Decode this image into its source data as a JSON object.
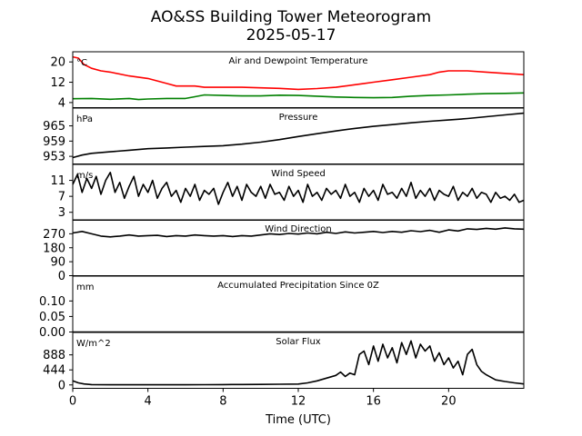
{
  "page": {
    "title": "AO&SS Building Tower Meteorogram",
    "subtitle": "2025-05-17",
    "xlabel": "Time (UTC)"
  },
  "chart_data": [
    {
      "type": "line",
      "title": "Air and Dewpoint Temperature",
      "unit": "°C",
      "ylim": [
        2,
        24
      ],
      "yticks": [
        4,
        12,
        20
      ],
      "series": [
        {
          "color": "#ff0000",
          "x": [
            0,
            0.3,
            0.6,
            1,
            1.5,
            2,
            3,
            4,
            5,
            5.5,
            6,
            6.5,
            7,
            8,
            9,
            10,
            11,
            12,
            13,
            14,
            14.5,
            15,
            15.5,
            16,
            17,
            18,
            19,
            19.5,
            20,
            21,
            22,
            23,
            24
          ],
          "values": [
            22,
            21.5,
            19,
            17.5,
            16.5,
            16,
            14.5,
            13.5,
            11.5,
            10.5,
            10.5,
            10.5,
            10,
            10,
            10,
            9.8,
            9.6,
            9.2,
            9.5,
            10,
            10.5,
            11,
            11.5,
            12,
            13,
            14,
            15,
            16,
            16.5,
            16.5,
            16,
            15.5,
            15
          ]
        },
        {
          "color": "#008000",
          "x": [
            0,
            1,
            2,
            3,
            3.5,
            4,
            5,
            6,
            6.5,
            7,
            8,
            9,
            10,
            11,
            12,
            13,
            14,
            15,
            16,
            17,
            18,
            19,
            20,
            21,
            22,
            23,
            24
          ],
          "values": [
            5.5,
            5.6,
            5.3,
            5.6,
            5.2,
            5.4,
            5.6,
            5.6,
            6.3,
            7,
            6.8,
            6.6,
            6.6,
            6.9,
            6.8,
            6.5,
            6.2,
            6,
            5.9,
            6,
            6.5,
            6.8,
            7,
            7.3,
            7.5,
            7.6,
            7.8
          ]
        }
      ]
    },
    {
      "type": "line",
      "title": "Pressure",
      "unit": "hPa",
      "ylim": [
        950,
        972
      ],
      "yticks": [
        953,
        959,
        965
      ],
      "series": [
        {
          "color": "#000000",
          "x": [
            0,
            0.5,
            1,
            2,
            3,
            4,
            5,
            6,
            7,
            8,
            9,
            10,
            11,
            12,
            13,
            14,
            15,
            16,
            17,
            18,
            19,
            20,
            21,
            22,
            23,
            24
          ],
          "values": [
            952.5,
            953.5,
            954.2,
            954.8,
            955.4,
            956,
            956.3,
            956.6,
            956.9,
            957.2,
            957.8,
            958.6,
            959.6,
            960.8,
            961.9,
            963,
            964,
            964.8,
            965.5,
            966.2,
            966.8,
            967.3,
            967.9,
            968.6,
            969.3,
            970
          ]
        }
      ]
    },
    {
      "type": "line",
      "title": "Wind Speed",
      "unit": "m/s",
      "ylim": [
        1,
        15
      ],
      "yticks": [
        3,
        7,
        11
      ],
      "series": [
        {
          "color": "#000000",
          "x": [
            0,
            0.25,
            0.5,
            0.75,
            1,
            1.25,
            1.5,
            1.75,
            2,
            2.25,
            2.5,
            2.75,
            3,
            3.25,
            3.5,
            3.75,
            4,
            4.25,
            4.5,
            4.75,
            5,
            5.25,
            5.5,
            5.75,
            6,
            6.25,
            6.5,
            6.75,
            7,
            7.25,
            7.5,
            7.75,
            8,
            8.25,
            8.5,
            8.75,
            9,
            9.25,
            9.5,
            9.75,
            10,
            10.25,
            10.5,
            10.75,
            11,
            11.25,
            11.5,
            11.75,
            12,
            12.25,
            12.5,
            12.75,
            13,
            13.25,
            13.5,
            13.75,
            14,
            14.25,
            14.5,
            14.75,
            15,
            15.25,
            15.5,
            15.75,
            16,
            16.25,
            16.5,
            16.75,
            17,
            17.25,
            17.5,
            17.75,
            18,
            18.25,
            18.5,
            18.75,
            19,
            19.25,
            19.5,
            19.75,
            20,
            20.25,
            20.5,
            20.75,
            21,
            21.25,
            21.5,
            21.75,
            22,
            22.25,
            22.5,
            22.75,
            23,
            23.25,
            23.5,
            23.75,
            24
          ],
          "values": [
            10,
            12.5,
            8,
            11.5,
            9,
            12,
            7.5,
            11,
            13,
            8,
            10.5,
            6.5,
            9.5,
            12,
            7,
            10,
            8,
            11,
            6.5,
            9,
            10.5,
            7,
            8.5,
            5.5,
            9,
            7,
            10,
            6,
            8.5,
            7.5,
            9,
            5,
            8,
            10.5,
            7,
            9.5,
            6,
            10,
            8,
            7,
            9.5,
            6.5,
            10,
            7.5,
            8,
            6,
            9.5,
            7,
            8.5,
            5.5,
            10,
            7,
            8,
            6,
            9,
            7.5,
            8.5,
            6.5,
            10,
            7,
            8,
            5.5,
            9,
            7,
            8.5,
            6,
            10,
            7.5,
            8,
            6.5,
            9,
            7,
            10.5,
            6.5,
            8.5,
            7,
            9,
            6,
            8.5,
            7.5,
            7,
            9.5,
            6,
            8,
            7,
            9,
            6.5,
            8,
            7.5,
            5.5,
            8,
            6.5,
            7,
            6,
            7.5,
            5.5,
            6
          ]
        }
      ]
    },
    {
      "type": "line",
      "title": "Wind Direction",
      "unit": "",
      "ylim": [
        0,
        360
      ],
      "yticks": [
        0,
        90,
        180,
        270
      ],
      "series": [
        {
          "color": "#000000",
          "x": [
            0,
            0.5,
            1,
            1.5,
            2,
            2.5,
            3,
            3.5,
            4,
            4.5,
            5,
            5.5,
            6,
            6.5,
            7,
            7.5,
            8,
            8.5,
            9,
            9.5,
            10,
            10.5,
            11,
            11.5,
            12,
            12.5,
            13,
            13.5,
            14,
            14.5,
            15,
            15.5,
            16,
            16.5,
            17,
            17.5,
            18,
            18.5,
            19,
            19.5,
            20,
            20.5,
            21,
            21.5,
            22,
            22.5,
            23,
            23.5,
            24
          ],
          "values": [
            275,
            285,
            270,
            255,
            250,
            255,
            262,
            255,
            258,
            260,
            252,
            258,
            255,
            262,
            258,
            255,
            258,
            252,
            258,
            255,
            262,
            270,
            265,
            272,
            268,
            275,
            270,
            280,
            272,
            282,
            275,
            280,
            285,
            278,
            285,
            280,
            290,
            284,
            292,
            280,
            295,
            288,
            302,
            298,
            305,
            300,
            308,
            302,
            300
          ]
        }
      ]
    },
    {
      "type": "line",
      "title": "Accumulated Precipitation Since 0Z",
      "unit": "mm",
      "ylim": [
        0,
        0.18
      ],
      "yticks": [
        0.0,
        0.05,
        0.1
      ],
      "series": [
        {
          "color": "#000000",
          "x": [
            0,
            24
          ],
          "values": [
            0,
            0
          ]
        }
      ]
    },
    {
      "type": "line",
      "title": "Solar Flux",
      "unit": "W/m^2",
      "ylim": [
        -100,
        1550
      ],
      "yticks": [
        0,
        444,
        888
      ],
      "series": [
        {
          "color": "#000000",
          "x": [
            0,
            0.3,
            0.6,
            1,
            2,
            3,
            4,
            5,
            6,
            7,
            8,
            9,
            10,
            11,
            12,
            12.5,
            13,
            13.5,
            14,
            14.25,
            14.5,
            14.75,
            15,
            15.25,
            15.5,
            15.75,
            16,
            16.25,
            16.5,
            16.75,
            17,
            17.25,
            17.5,
            17.75,
            18,
            18.25,
            18.5,
            18.75,
            19,
            19.25,
            19.5,
            19.75,
            20,
            20.25,
            20.5,
            20.75,
            21,
            21.25,
            21.5,
            21.75,
            22,
            22.5,
            23,
            23.5,
            24
          ],
          "values": [
            120,
            60,
            30,
            10,
            5,
            5,
            5,
            5,
            5,
            8,
            10,
            12,
            15,
            20,
            25,
            60,
            120,
            200,
            280,
            380,
            250,
            350,
            300,
            900,
            1000,
            600,
            1150,
            700,
            1200,
            800,
            1100,
            650,
            1250,
            900,
            1300,
            800,
            1200,
            1000,
            1150,
            700,
            950,
            600,
            800,
            500,
            700,
            300,
            900,
            1050,
            600,
            400,
            300,
            150,
            100,
            60,
            30
          ]
        }
      ]
    }
  ],
  "xaxis": {
    "xlim": [
      0,
      24
    ],
    "ticks": [
      0,
      4,
      8,
      12,
      16,
      20
    ]
  }
}
